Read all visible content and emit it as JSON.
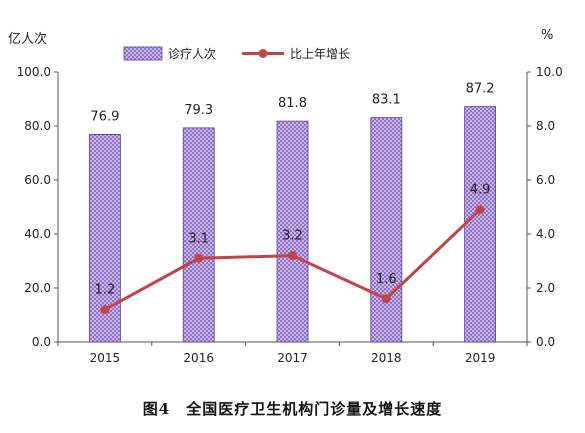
{
  "chart_data": {
    "type": "bar+line",
    "categories": [
      "2015",
      "2016",
      "2017",
      "2018",
      "2019"
    ],
    "series": [
      {
        "name": "诊疗人次",
        "kind": "bar",
        "axis": "left",
        "values": [
          76.9,
          79.3,
          81.8,
          83.1,
          87.2
        ],
        "labels": [
          "76.9",
          "79.3",
          "81.8",
          "83.1",
          "87.2"
        ],
        "color": "#b39ddb"
      },
      {
        "name": "比上年增长",
        "kind": "line",
        "axis": "right",
        "values": [
          1.2,
          3.1,
          3.2,
          1.6,
          4.9
        ],
        "labels": [
          "1.2",
          "3.1",
          "3.2",
          "1.6",
          "4.9"
        ],
        "color": "#c0454a"
      }
    ],
    "ylabel_left": "亿人次",
    "ylabel_right": "%",
    "ylim_left": [
      0,
      100
    ],
    "ylim_right": [
      0,
      10
    ],
    "yticks_left": [
      "0.0",
      "20.0",
      "40.0",
      "60.0",
      "80.0",
      "100.0"
    ],
    "yticks_right": [
      "0.0",
      "2.0",
      "4.0",
      "6.0",
      "8.0",
      "10.0"
    ],
    "legend_position": "top",
    "grid": false,
    "caption": "图4　全国医疗卫生机构门诊量及增长速度"
  }
}
